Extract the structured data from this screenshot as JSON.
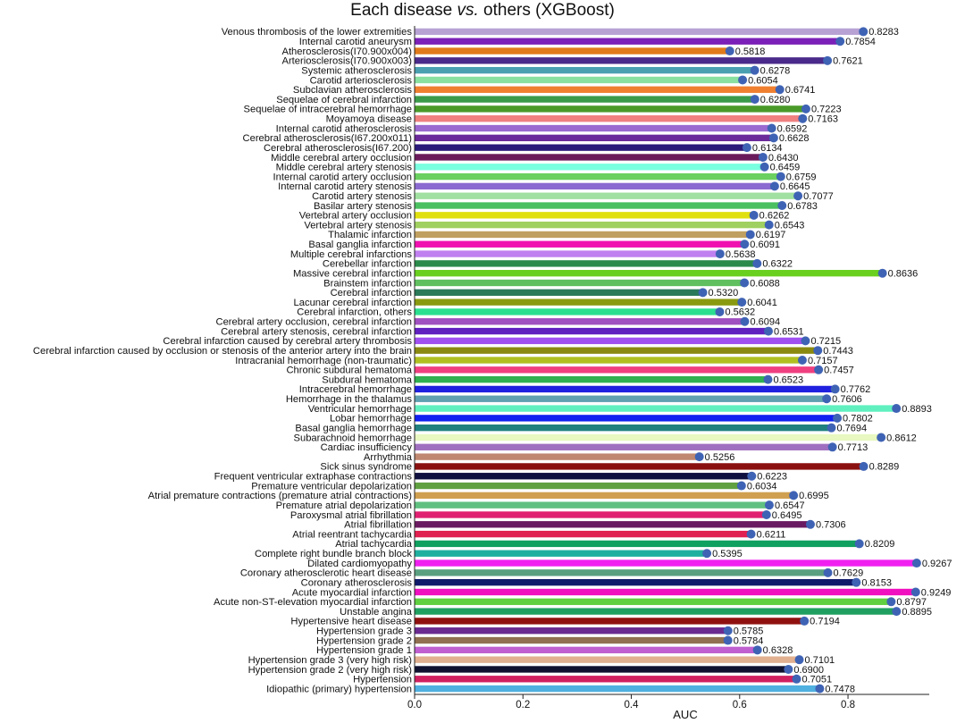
{
  "chart_data": {
    "type": "bar",
    "orientation": "horizontal",
    "title": "Each disease vs. others (XGBoost)",
    "title_prefix": "Each disease ",
    "title_italic": "vs.",
    "title_suffix": " others (XGBoost)",
    "xlabel": "AUC",
    "ylabel": "",
    "xlim": [
      0,
      0.95
    ],
    "xticks": [
      "0.0",
      "0.2",
      "0.4",
      "0.6",
      "0.8"
    ],
    "xtick_values": [
      0.0,
      0.2,
      0.4,
      0.6,
      0.8
    ],
    "grid": false,
    "marker_color": "#3f63b4",
    "categories": [
      "Venous thrombosis of the lower extremities",
      "Internal carotid aneurysm",
      "Atherosclerosis(I70.900x004)",
      "Arteriosclerosis(I70.900x003)",
      "Systemic atherosclerosis",
      "Carotid arteriosclerosis",
      "Subclavian atherosclerosis",
      "Sequelae of cerebral infarction",
      "Sequelae of intracerebral hemorrhage",
      "Moyamoya disease",
      "Internal carotid atherosclerosis",
      "Cerebral atherosclerosis(I67.200x011)",
      "Cerebral atherosclerosis(I67.200)",
      "Middle cerebral artery occlusion",
      "Middle cerebral artery stenosis",
      "Internal carotid artery occlusion",
      "Internal carotid artery stenosis",
      "Carotid artery stenosis",
      "Basilar artery stenosis",
      "Vertebral artery occlusion",
      "Vertebral artery stenosis",
      "Thalamic infarction",
      "Basal ganglia infarction",
      "Multiple cerebral infarctions",
      "Cerebellar infarction",
      "Massive cerebral infarction",
      "Brainstem infarction",
      "Cerebral infarction",
      "Lacunar cerebral infarction",
      "Cerebral infarction, others",
      "Cerebral artery occlusion, cerebral infarction",
      "Cerebral artery stenosis, cerebral infarction",
      "Cerebral infarction caused by cerebral artery thrombosis",
      "Cerebral infarction caused by occlusion or stenosis of the anterior artery into the brain",
      "Intracranial hemorrhage (non-traumatic)",
      "Chronic subdural hematoma",
      "Subdural hematoma",
      "Intracerebral hemorrhage",
      "Hemorrhage in the thalamus",
      "Ventricular hemorrhage",
      "Lobar hemorrhage",
      "Basal ganglia hemorrhage",
      "Subarachnoid hemorrhage",
      "Cardiac insufficiency",
      "Arrhythmia",
      "Sick sinus syndrome",
      "Frequent ventricular extraphase contractions",
      "Premature ventricular depolarization",
      "Atrial premature contractions (premature atrial contractions)",
      "Premature atrial depolarization",
      "Paroxysmal atrial fibrillation",
      "Atrial fibrillation",
      "Atrial reentrant tachycardia",
      "Atrial tachycardia",
      "Complete right bundle branch block",
      "Dilated cardiomyopathy",
      "Coronary atherosclerotic heart disease",
      "Coronary atherosclerosis",
      "Acute myocardial infarction",
      "Acute non-ST-elevation myocardial infarction",
      "Unstable angina",
      "Hypertensive heart disease",
      "Hypertension grade 3",
      "Hypertension grade 2",
      "Hypertension grade 1",
      "Hypertension grade 3 (very high risk)",
      "Hypertension grade 2 (very high risk)",
      "Hypertension",
      "Idiopathic (primary) hypertension"
    ],
    "values": [
      0.8283,
      0.7854,
      0.5818,
      0.7621,
      0.6278,
      0.6054,
      0.6741,
      0.628,
      0.7223,
      0.7163,
      0.6592,
      0.6628,
      0.6134,
      0.643,
      0.6459,
      0.6759,
      0.6645,
      0.7077,
      0.6783,
      0.6262,
      0.6543,
      0.6197,
      0.6091,
      0.5638,
      0.6322,
      0.8636,
      0.6088,
      0.532,
      0.6041,
      0.5632,
      0.6094,
      0.6531,
      0.7215,
      0.7443,
      0.7157,
      0.7457,
      0.6523,
      0.7762,
      0.7606,
      0.8893,
      0.7802,
      0.7694,
      0.8612,
      0.7713,
      0.5256,
      0.8289,
      0.6223,
      0.6034,
      0.6995,
      0.6547,
      0.6495,
      0.7306,
      0.6211,
      0.8209,
      0.5395,
      0.9267,
      0.7629,
      0.8153,
      0.9249,
      0.8797,
      0.8895,
      0.7194,
      0.5785,
      0.5784,
      0.6328,
      0.7101,
      0.69,
      0.7051,
      0.7478
    ],
    "value_labels": [
      "0.8283",
      "0.7854",
      "0.5818",
      "0.7621",
      "0.6278",
      "0.6054",
      "0.6741",
      "0.6280",
      "0.7223",
      "0.7163",
      "0.6592",
      "0.6628",
      "0.6134",
      "0.6430",
      "0.6459",
      "0.6759",
      "0.6645",
      "0.7077",
      "0.6783",
      "0.6262",
      "0.6543",
      "0.6197",
      "0.6091",
      "0.5638",
      "0.6322",
      "0.8636",
      "0.6088",
      "0.5320",
      "0.6041",
      "0.5632",
      "0.6094",
      "0.6531",
      "0.7215",
      "0.7443",
      "0.7157",
      "0.7457",
      "0.6523",
      "0.7762",
      "0.7606",
      "0.8893",
      "0.7802",
      "0.7694",
      "0.8612",
      "0.7713",
      "0.5256",
      "0.8289",
      "0.6223",
      "0.6034",
      "0.6995",
      "0.6547",
      "0.6495",
      "0.7306",
      "0.6211",
      "0.8209",
      "0.5395",
      "0.9267",
      "0.7629",
      "0.8153",
      "0.9249",
      "0.8797",
      "0.8895",
      "0.7194",
      "0.5785",
      "0.5784",
      "0.6328",
      "0.7101",
      "0.6900",
      "0.7051",
      "0.7478"
    ],
    "colors": [
      "#b8a2d4",
      "#7b20b8",
      "#e07a1a",
      "#4a2a8a",
      "#4aa0b0",
      "#8ae0a0",
      "#f08030",
      "#3a9a4a",
      "#4a9a2a",
      "#f08080",
      "#9a6ad0",
      "#6a2a9a",
      "#2a1a7a",
      "#6a1a5a",
      "#7affe0",
      "#6ad060",
      "#8a6ad0",
      "#a0e0a0",
      "#4ac060",
      "#e0e010",
      "#a0d060",
      "#c0a060",
      "#f010b0",
      "#c080f0",
      "#2a8a4a",
      "#6ad020",
      "#60c060",
      "#2a7a5a",
      "#8a9a10",
      "#2ae090",
      "#a050c0",
      "#6020c0",
      "#a050f0",
      "#8a8a10",
      "#b0c020",
      "#f04080",
      "#30b050",
      "#2020e0",
      "#60a0b0",
      "#60f0c0",
      "#1020f0",
      "#208080",
      "#e8f8c0",
      "#a070c0",
      "#c08870",
      "#8a1010",
      "#101040",
      "#60a040",
      "#d0a050",
      "#60c080",
      "#e02070",
      "#6a1a60",
      "#e02050",
      "#10a060",
      "#20b0a0",
      "#f020f0",
      "#5aa080",
      "#101a6a",
      "#f010c0",
      "#60d040",
      "#20a060",
      "#901010",
      "#6a2a90",
      "#907050",
      "#c060d0",
      "#e0b090",
      "#101030",
      "#d02060",
      "#50b0e0"
    ]
  }
}
